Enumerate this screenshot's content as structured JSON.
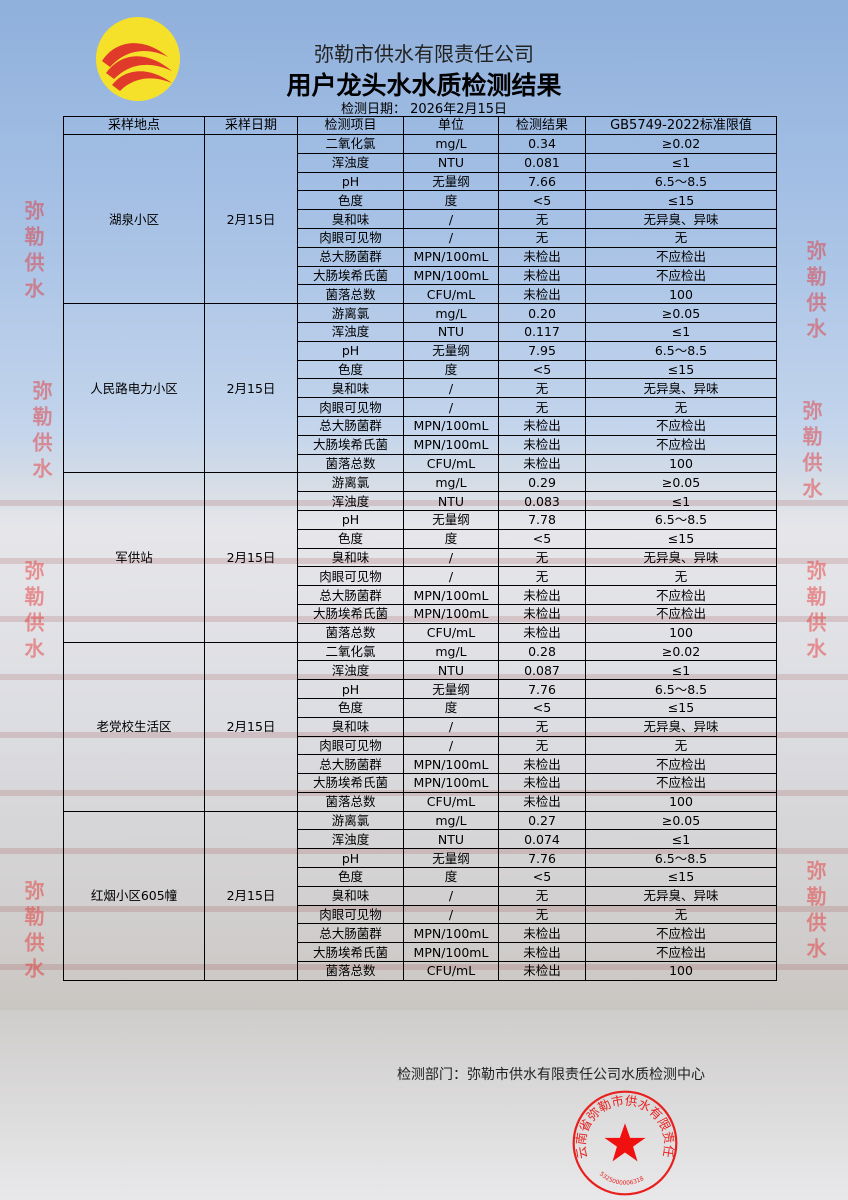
{
  "header": {
    "company": "弥勒市供水有限责任公司",
    "title": "用户龙头水水质检测结果",
    "date_label": "检测日期： 2026年2月15日"
  },
  "columns": [
    "采样地点",
    "采样日期",
    "检测项目",
    "单位",
    "检测结果",
    "GB5749-2022标准限值"
  ],
  "groups": [
    {
      "site": "湖泉小区",
      "date": "2月15日",
      "rows": [
        [
          "二氧化氯",
          "mg/L",
          "0.34",
          "≥0.02"
        ],
        [
          "浑浊度",
          "NTU",
          "0.081",
          "≤1"
        ],
        [
          "pH",
          "无量纲",
          "7.66",
          "6.5～8.5"
        ],
        [
          "色度",
          "度",
          "<5",
          "≤15"
        ],
        [
          "臭和味",
          "/",
          "无",
          "无异臭、异味"
        ],
        [
          "肉眼可见物",
          "/",
          "无",
          "无"
        ],
        [
          "总大肠菌群",
          "MPN/100mL",
          "未检出",
          "不应检出"
        ],
        [
          "大肠埃希氏菌",
          "MPN/100mL",
          "未检出",
          "不应检出"
        ],
        [
          "菌落总数",
          "CFU/mL",
          "未检出",
          "100"
        ]
      ]
    },
    {
      "site": "人民路电力小区",
      "date": "2月15日",
      "rows": [
        [
          "游离氯",
          "mg/L",
          "0.20",
          "≥0.05"
        ],
        [
          "浑浊度",
          "NTU",
          "0.117",
          "≤1"
        ],
        [
          "pH",
          "无量纲",
          "7.95",
          "6.5～8.5"
        ],
        [
          "色度",
          "度",
          "<5",
          "≤15"
        ],
        [
          "臭和味",
          "/",
          "无",
          "无异臭、异味"
        ],
        [
          "肉眼可见物",
          "/",
          "无",
          "无"
        ],
        [
          "总大肠菌群",
          "MPN/100mL",
          "未检出",
          "不应检出"
        ],
        [
          "大肠埃希氏菌",
          "MPN/100mL",
          "未检出",
          "不应检出"
        ],
        [
          "菌落总数",
          "CFU/mL",
          "未检出",
          "100"
        ]
      ]
    },
    {
      "site": "军供站",
      "date": "2月15日",
      "rows": [
        [
          "游离氯",
          "mg/L",
          "0.29",
          "≥0.05"
        ],
        [
          "浑浊度",
          "NTU",
          "0.083",
          "≤1"
        ],
        [
          "pH",
          "无量纲",
          "7.78",
          "6.5～8.5"
        ],
        [
          "色度",
          "度",
          "<5",
          "≤15"
        ],
        [
          "臭和味",
          "/",
          "无",
          "无异臭、异味"
        ],
        [
          "肉眼可见物",
          "/",
          "无",
          "无"
        ],
        [
          "总大肠菌群",
          "MPN/100mL",
          "未检出",
          "不应检出"
        ],
        [
          "大肠埃希氏菌",
          "MPN/100mL",
          "未检出",
          "不应检出"
        ],
        [
          "菌落总数",
          "CFU/mL",
          "未检出",
          "100"
        ]
      ]
    },
    {
      "site": "老党校生活区",
      "date": "2月15日",
      "rows": [
        [
          "二氧化氯",
          "mg/L",
          "0.28",
          "≥0.02"
        ],
        [
          "浑浊度",
          "NTU",
          "0.087",
          "≤1"
        ],
        [
          "pH",
          "无量纲",
          "7.76",
          "6.5～8.5"
        ],
        [
          "色度",
          "度",
          "<5",
          "≤15"
        ],
        [
          "臭和味",
          "/",
          "无",
          "无异臭、异味"
        ],
        [
          "肉眼可见物",
          "/",
          "无",
          "无"
        ],
        [
          "总大肠菌群",
          "MPN/100mL",
          "未检出",
          "不应检出"
        ],
        [
          "大肠埃希氏菌",
          "MPN/100mL",
          "未检出",
          "不应检出"
        ],
        [
          "菌落总数",
          "CFU/mL",
          "未检出",
          "100"
        ]
      ]
    },
    {
      "site": "红烟小区605幢",
      "date": "2月15日",
      "rows": [
        [
          "游离氯",
          "mg/L",
          "0.27",
          "≥0.05"
        ],
        [
          "浑浊度",
          "NTU",
          "0.074",
          "≤1"
        ],
        [
          "pH",
          "无量纲",
          "7.76",
          "6.5～8.5"
        ],
        [
          "色度",
          "度",
          "<5",
          "≤15"
        ],
        [
          "臭和味",
          "/",
          "无",
          "无异臭、异味"
        ],
        [
          "肉眼可见物",
          "/",
          "无",
          "无"
        ],
        [
          "总大肠菌群",
          "MPN/100mL",
          "未检出",
          "不应检出"
        ],
        [
          "大肠埃希氏菌",
          "MPN/100mL",
          "未检出",
          "不应检出"
        ],
        [
          "菌落总数",
          "CFU/mL",
          "未检出",
          "100"
        ]
      ]
    }
  ],
  "footer": {
    "department": "检测部门：弥勒市供水有限责任公司水质检测中心"
  },
  "watermark": "弥勒供水",
  "seal": {
    "text": "云南省弥勒市供水有限责任公司",
    "number": "5325000006318",
    "color": "#e8201e"
  },
  "colors": {
    "logo_bg": "#f5e12a",
    "logo_waves": "#e03a2a"
  }
}
